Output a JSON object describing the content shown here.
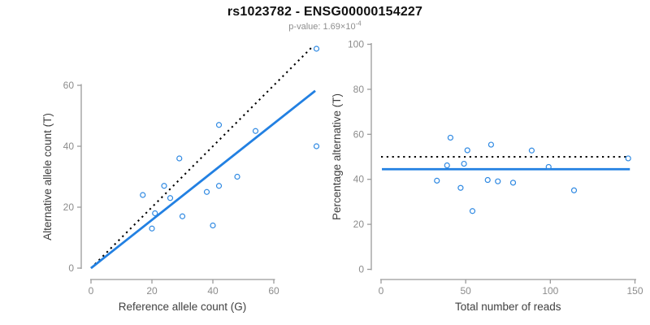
{
  "header": {
    "title": "rs1023782 - ENSG00000154227",
    "p_value_base": "p-value: 1.69×10",
    "p_value_exponent": "-4"
  },
  "colors": {
    "point_blue": "#2f89e2",
    "line_blue": "#2280e2",
    "identity_black": "#000000",
    "axis_gray": "#9a9a9a",
    "tick_label_gray": "#8c8c8c",
    "axis_title_dark": "#3f3f3f",
    "title_black": "#111111",
    "subtitle_gray": "#8e8e8e"
  },
  "chart_data": [
    {
      "id": "allele-counts",
      "type": "scatter",
      "title": "",
      "xlabel": "Reference allele count (G)",
      "ylabel": "Alternative allele count (T)",
      "xlim": [
        0,
        75
      ],
      "ylim": [
        0,
        75
      ],
      "xticks": [
        0,
        20,
        40,
        60
      ],
      "yticks": [
        0,
        20,
        40,
        60
      ],
      "grid": false,
      "legend": "none",
      "points": [
        [
          17,
          24
        ],
        [
          20,
          13
        ],
        [
          21,
          18
        ],
        [
          24,
          27
        ],
        [
          26,
          23
        ],
        [
          29,
          36
        ],
        [
          30,
          17
        ],
        [
          38,
          25
        ],
        [
          40,
          14
        ],
        [
          42,
          27
        ],
        [
          42,
          47
        ],
        [
          48,
          30
        ],
        [
          54,
          45
        ],
        [
          74,
          40
        ],
        [
          74,
          72
        ]
      ],
      "lines": [
        {
          "name": "identity-line",
          "style": "dotted",
          "color_key": "identity_black",
          "from": [
            0,
            0
          ],
          "to": [
            73,
            73
          ]
        },
        {
          "name": "fitted-ratio-line",
          "style": "solid",
          "color_key": "line_blue",
          "from": [
            0,
            0
          ],
          "to": [
            73.6,
            58.2
          ]
        }
      ]
    },
    {
      "id": "percentage-vs-reads",
      "type": "scatter",
      "title": "",
      "xlabel": "Total number of reads",
      "ylabel": "Percentage alternative (T)",
      "xlim": [
        0,
        150
      ],
      "ylim": [
        0,
        100
      ],
      "xticks": [
        0,
        50,
        100,
        150
      ],
      "yticks": [
        0,
        20,
        40,
        60,
        80,
        100
      ],
      "grid": false,
      "legend": "none",
      "points": [
        [
          41,
          58.5
        ],
        [
          33,
          39.4
        ],
        [
          39,
          46.2
        ],
        [
          51,
          52.9
        ],
        [
          49,
          46.9
        ],
        [
          65,
          55.4
        ],
        [
          47,
          36.2
        ],
        [
          63,
          39.7
        ],
        [
          54,
          25.9
        ],
        [
          69,
          39.1
        ],
        [
          89,
          52.8
        ],
        [
          78,
          38.5
        ],
        [
          99,
          45.5
        ],
        [
          114,
          35.1
        ],
        [
          146,
          49.3
        ]
      ],
      "lines": [
        {
          "name": "expected-50pct-line",
          "style": "dotted",
          "color_key": "identity_black",
          "from": [
            0,
            50
          ],
          "to": [
            146.5,
            50
          ]
        },
        {
          "name": "mean-percentage-line",
          "style": "solid",
          "color_key": "line_blue",
          "from": [
            0.5,
            44.5
          ],
          "to": [
            147,
            44.5
          ]
        }
      ]
    }
  ]
}
